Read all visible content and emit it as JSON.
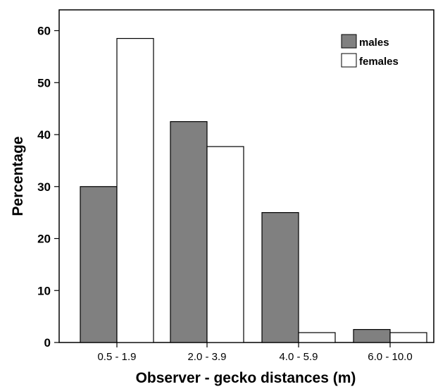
{
  "chart_data": {
    "type": "bar",
    "categories": [
      "0.5 - 1.9",
      "2.0 - 3.9",
      "4.0 - 5.9",
      "6.0 - 10.0"
    ],
    "series": [
      {
        "name": "males",
        "values": [
          30,
          42.5,
          25,
          2.5
        ],
        "color": "#808080"
      },
      {
        "name": "females",
        "values": [
          58.5,
          37.7,
          1.9,
          1.9
        ],
        "color": "#ffffff"
      }
    ],
    "xlabel": "Observer - gecko distances (m)",
    "ylabel": "Percentage",
    "ylim": [
      0,
      64
    ],
    "yticks": [
      0,
      10,
      20,
      30,
      40,
      50,
      60
    ],
    "grid": false,
    "legend_position": "top-right"
  }
}
